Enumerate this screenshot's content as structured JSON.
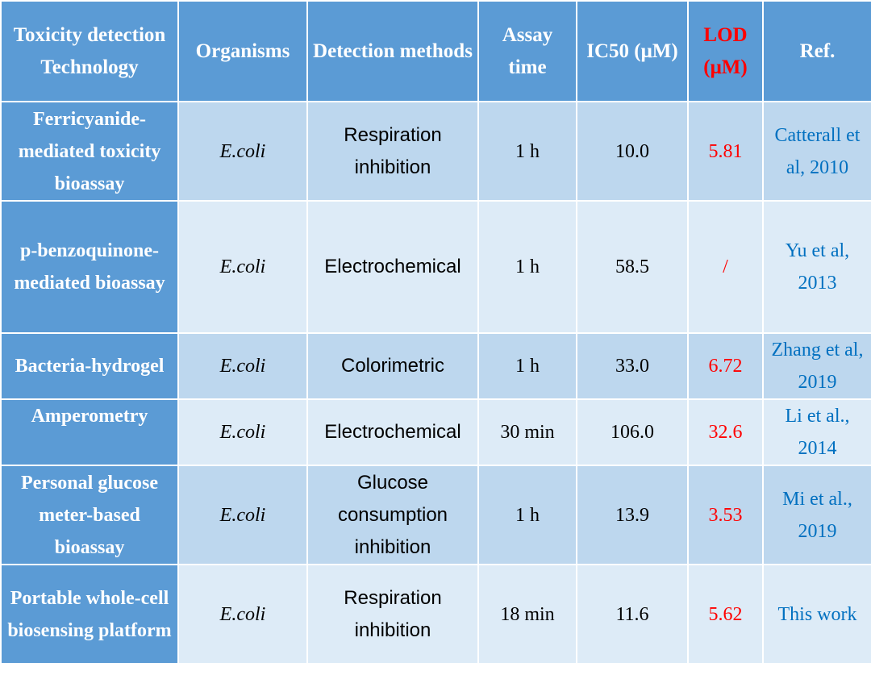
{
  "colors": {
    "header_bg": "#5b9bd5",
    "row_odd_bg": "#bdd7ee",
    "row_even_bg": "#ddebf7",
    "lod_red": "#ff0000",
    "ref_blue": "#0070c0"
  },
  "headers": {
    "technology": "Toxicity detection Technology",
    "organisms": "Organisms",
    "methods": "Detection methods",
    "assay_time": "Assay time",
    "ic50": "IC50 (μM)",
    "lod": "LOD (μM)",
    "ref": "Ref."
  },
  "rows": [
    {
      "technology": "Ferricyanide-mediated toxicity bioassay",
      "organism": "E.coli",
      "method": "Respiration inhibition",
      "assay_time": "1 h",
      "ic50": "10.0",
      "lod": "5.81",
      "ref": "Catterall et al, 2010"
    },
    {
      "technology": "p-benzoquinone-mediated bioassay",
      "organism": "E.coli",
      "method": "Electrochemical",
      "assay_time": "1 h",
      "ic50": "58.5",
      "lod": "/",
      "ref": "Yu et al, 2013"
    },
    {
      "technology": "Bacteria-hydrogel",
      "organism": "E.coli",
      "method": "Colorimetric",
      "assay_time": "1 h",
      "ic50": "33.0",
      "lod": "6.72",
      "ref": "Zhang et al, 2019"
    },
    {
      "technology": "Amperometry",
      "organism": "E.coli",
      "method": "Electrochemical",
      "assay_time": "30 min",
      "ic50": "106.0",
      "lod": "32.6",
      "ref": "Li et al., 2014"
    },
    {
      "technology": "Personal glucose meter-based bioassay",
      "organism": "E.coli",
      "method": "Glucose consumption inhibition",
      "assay_time": "1 h",
      "ic50": "13.9",
      "lod": "3.53",
      "ref": "Mi et al., 2019"
    },
    {
      "technology": "Portable whole-cell biosensing platform",
      "organism": "E.coli",
      "method": "Respiration inhibition",
      "assay_time": "18 min",
      "ic50": "11.6",
      "lod": "5.62",
      "ref": "This work"
    }
  ]
}
